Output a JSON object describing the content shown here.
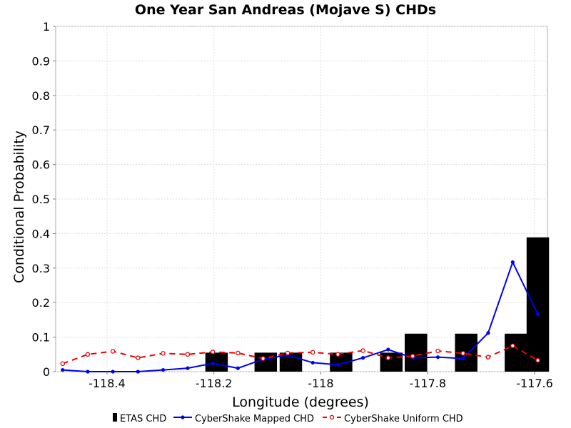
{
  "chart_data": {
    "type": "bar",
    "title": "One Year San Andreas (Mojave S) CHDs",
    "xlabel": "Longitude (degrees)",
    "ylabel": "Conditional Probability",
    "xlim": [
      -118.496,
      -117.576
    ],
    "ylim": [
      0,
      1
    ],
    "xticks": [
      -118.4,
      -118.2,
      -118.0,
      -117.8,
      -117.6
    ],
    "xtick_labels": [
      "-118.4",
      "-118.2",
      "-118",
      "-117.8",
      "-117.6"
    ],
    "yticks": [
      0,
      0.1,
      0.2,
      0.3,
      0.4,
      0.5,
      0.6,
      0.7,
      0.8,
      0.9,
      1
    ],
    "ytick_labels": [
      "0",
      "0.1",
      "0.2",
      "0.3",
      "0.4",
      "0.5",
      "0.6",
      "0.7",
      "0.8",
      "0.9",
      "1"
    ],
    "grid": true,
    "legend_position": "bottom",
    "bar_width": 0.042,
    "series": [
      {
        "name": "ETAS CHD",
        "kind": "bar",
        "color": "#000000",
        "x": [
          -118.195,
          -118.103,
          -118.056,
          -117.962,
          -117.868,
          -117.822,
          -117.728,
          -117.635,
          -117.594
        ],
        "values": [
          0.055,
          0.055,
          0.055,
          0.055,
          0.055,
          0.11,
          0.11,
          0.11,
          0.389
        ]
      },
      {
        "name": "CyberShake Mapped CHD",
        "kind": "line",
        "color": "#0000ee",
        "dash": "solid",
        "marker": "filled-circle",
        "x": [
          -118.483,
          -118.436,
          -118.389,
          -118.342,
          -118.295,
          -118.249,
          -118.202,
          -118.155,
          -118.108,
          -118.062,
          -118.015,
          -117.968,
          -117.921,
          -117.874,
          -117.828,
          -117.781,
          -117.734,
          -117.687,
          -117.641,
          -117.594
        ],
        "values": [
          0.005,
          0.0,
          0.0,
          0.0,
          0.005,
          0.01,
          0.024,
          0.01,
          0.036,
          0.048,
          0.026,
          0.02,
          0.04,
          0.064,
          0.04,
          0.042,
          0.038,
          0.112,
          0.317,
          0.166
        ]
      },
      {
        "name": "CyberShake Uniform CHD",
        "kind": "line",
        "color": "#ee0000",
        "dash": "dashed",
        "marker": "open-circle",
        "x": [
          -118.483,
          -118.436,
          -118.389,
          -118.342,
          -118.295,
          -118.249,
          -118.202,
          -118.155,
          -118.108,
          -118.062,
          -118.015,
          -117.968,
          -117.921,
          -117.874,
          -117.828,
          -117.781,
          -117.734,
          -117.687,
          -117.641,
          -117.594
        ],
        "values": [
          0.023,
          0.05,
          0.059,
          0.04,
          0.053,
          0.05,
          0.057,
          0.054,
          0.038,
          0.054,
          0.056,
          0.05,
          0.061,
          0.04,
          0.045,
          0.06,
          0.053,
          0.042,
          0.075,
          0.033
        ]
      }
    ]
  }
}
